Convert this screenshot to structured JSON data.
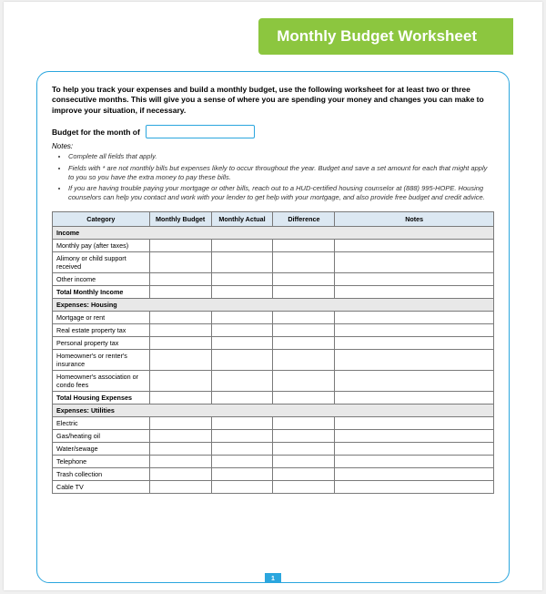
{
  "title": "Monthly Budget Worksheet",
  "intro": "To help you track your expenses and build a monthly budget, use the following worksheet for at least two or three consecutive months. This will give you a sense of where you are spending your money and changes you can make to improve your situation, if necessary.",
  "month_label": "Budget for the month of",
  "notes_label": "Notes:",
  "notes": [
    "Complete all fields that apply.",
    "Fields with * are not monthly bills but expenses likely to occur throughout the year. Budget and save a set amount for each that might apply to you so you have the extra money to pay these bills.",
    "If you are having trouble paying your mortgage or other bills, reach out to a HUD-certified housing counselor at (888) 995-HOPE. Housing counselors can help you contact and work with your lender to get help with your mortgage, and also provide free budget and credit advice."
  ],
  "columns": [
    "Category",
    "Monthly Budget",
    "Monthly Actual",
    "Difference",
    "Notes"
  ],
  "sections": [
    {
      "header": "Income",
      "rows": [
        "Monthly pay (after taxes)",
        "Alimony or child support received",
        "Other income"
      ],
      "total": "Total Monthly Income"
    },
    {
      "header": "Expenses: Housing",
      "rows": [
        "Mortgage or rent",
        "Real estate property tax",
        "Personal property tax",
        "Homeowner's or renter's insurance",
        "Homeowner's association or condo fees"
      ],
      "total": "Total Housing Expenses"
    },
    {
      "header": "Expenses: Utilities",
      "rows": [
        "Electric",
        "Gas/heating oil",
        "Water/sewage",
        "Telephone",
        "Trash collection",
        "Cable TV"
      ],
      "total": null
    }
  ],
  "page_number": "1",
  "colors": {
    "banner_bg": "#8cc63f",
    "border": "#2ba6de",
    "header_bg": "#dce8f2",
    "section_bg": "#e8e8e8"
  }
}
